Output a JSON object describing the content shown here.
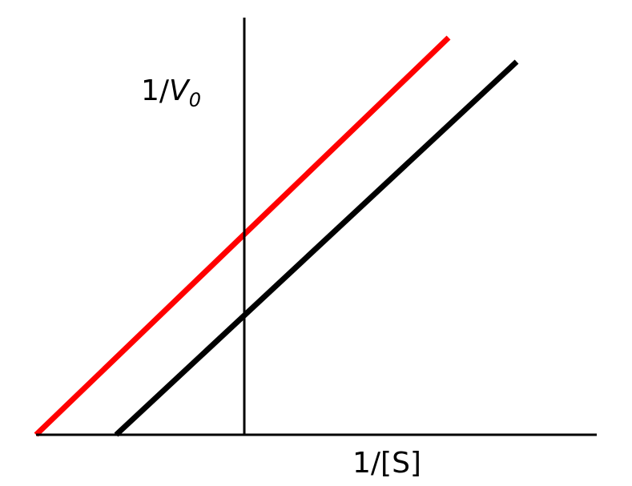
{
  "chart_data": {
    "type": "line",
    "xlabel": "1/[S]",
    "ylabel": {
      "prefix": "1/",
      "var": "V",
      "sub": "0"
    },
    "xlim": [
      -2.6,
      4.4
    ],
    "ylim": [
      0,
      5.2
    ],
    "grid": false,
    "series": [
      {
        "color": "#ff0000",
        "x": [
          -2.6,
          2.55
        ],
        "y": [
          0,
          4.95
        ]
      },
      {
        "color": "#000000",
        "x": [
          -1.6,
          3.4
        ],
        "y": [
          0,
          4.65
        ]
      }
    ]
  }
}
